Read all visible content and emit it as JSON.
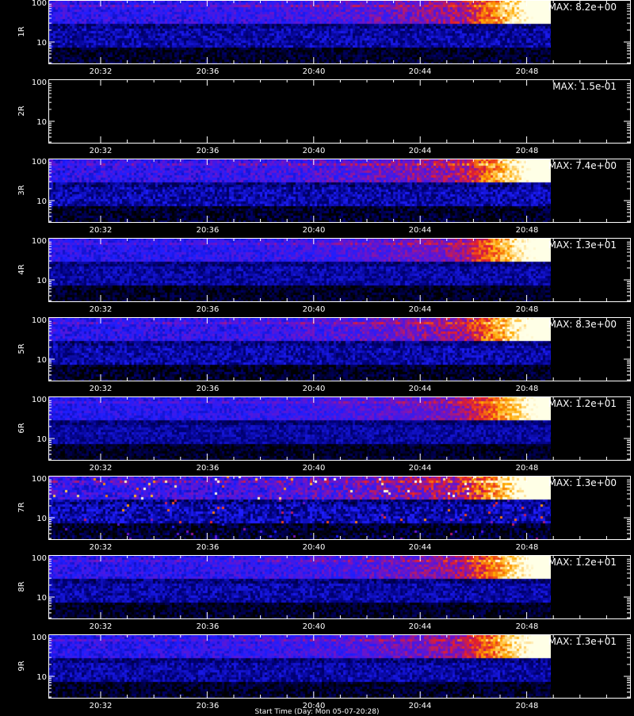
{
  "chart_data": {
    "type": "heatmap",
    "x_ticks": [
      "20:32",
      "20:36",
      "20:40",
      "20:44",
      "20:48"
    ],
    "y_ticks": [
      "100",
      "10"
    ],
    "y_scale": "log",
    "colormap": "black-blue-red-yellow-white",
    "panels": [
      {
        "label": "1R",
        "max": "MAX: 8.2e+00",
        "intensity": 0.85,
        "empty": false
      },
      {
        "label": "2R",
        "max": "MAX: 1.5e-01",
        "intensity": 0.0,
        "empty": true
      },
      {
        "label": "3R",
        "max": "MAX: 7.4e+00",
        "intensity": 0.9,
        "empty": false
      },
      {
        "label": "4R",
        "max": "MAX: 1.3e+01",
        "intensity": 0.75,
        "empty": false
      },
      {
        "label": "5R",
        "max": "MAX: 8.3e+00",
        "intensity": 0.85,
        "empty": false
      },
      {
        "label": "6R",
        "max": "MAX: 1.2e+01",
        "intensity": 0.7,
        "empty": false
      },
      {
        "label": "7R",
        "max": "MAX: 1.3e+00",
        "intensity": 1.0,
        "empty": false
      },
      {
        "label": "8R",
        "max": "MAX: 1.2e+01",
        "intensity": 0.8,
        "empty": false
      },
      {
        "label": "9R",
        "max": "MAX: 1.3e+01",
        "intensity": 0.8,
        "empty": false
      }
    ],
    "xlabel": "Start Time (Day: Mon 05-07-20:28)"
  }
}
